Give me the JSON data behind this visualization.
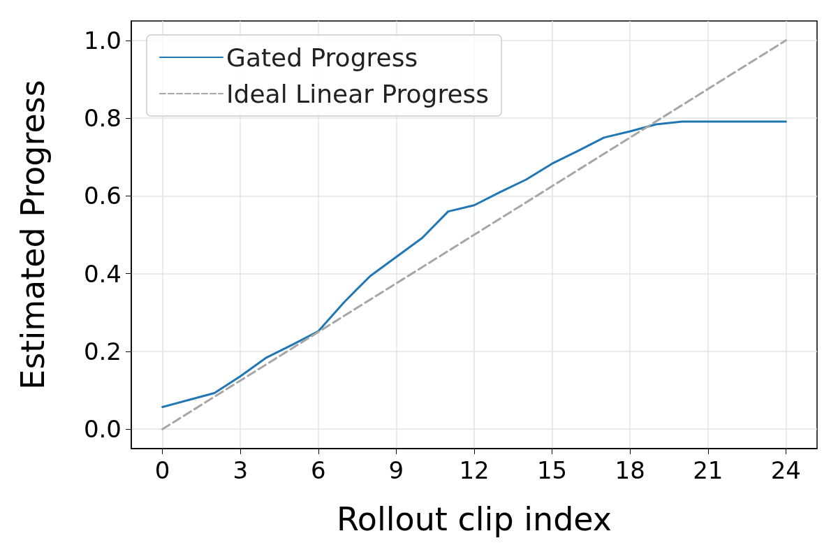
{
  "chart_data": {
    "type": "line",
    "xlabel": "Rollout clip index",
    "ylabel": "Estimated Progress",
    "x": [
      0,
      1,
      2,
      3,
      4,
      5,
      6,
      7,
      8,
      9,
      10,
      11,
      12,
      13,
      14,
      15,
      16,
      17,
      18,
      19,
      20,
      21,
      22,
      23,
      24
    ],
    "series": [
      {
        "name": "Gated Progress",
        "color": "#1f77b4",
        "values": [
          0.057,
          0.075,
          0.093,
          0.136,
          0.184,
          0.217,
          0.252,
          0.327,
          0.394,
          0.443,
          0.492,
          0.56,
          0.576,
          0.61,
          0.642,
          0.683,
          0.716,
          0.75,
          0.766,
          0.784,
          0.791,
          0.791,
          0.791,
          0.791,
          0.791
        ]
      },
      {
        "name": "Ideal Linear Progress",
        "color": "#a6a6a6",
        "line_style": "dashed",
        "x": [
          0,
          24
        ],
        "values": [
          0,
          1
        ]
      }
    ],
    "xlim": [
      -1.2,
      25.2
    ],
    "xticks": [
      0,
      3,
      6,
      9,
      12,
      15,
      18,
      21,
      24
    ],
    "ylim": [
      -0.05,
      1.05
    ],
    "yticks": [
      {
        "value": 0,
        "label": "0.0"
      },
      {
        "value": 0.2,
        "label": "0.2"
      },
      {
        "value": 0.4,
        "label": "0.4"
      },
      {
        "value": 0.6,
        "label": "0.6"
      },
      {
        "value": 0.8,
        "label": "0.8"
      },
      {
        "value": 1,
        "label": "1.0"
      }
    ],
    "grid": true,
    "legend": "top left",
    "marker": "none",
    "line_style": "solid"
  }
}
